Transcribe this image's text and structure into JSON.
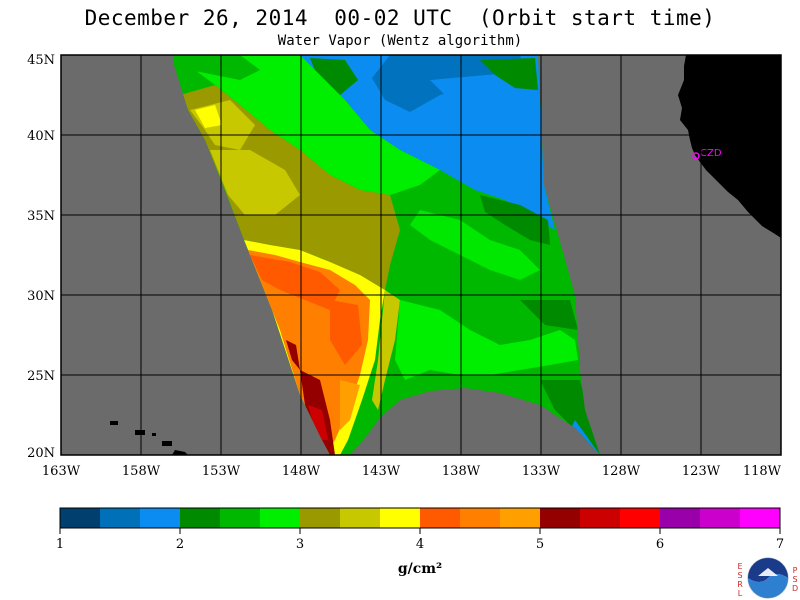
{
  "header": {
    "title": "December 26, 2014  00-02 UTC  (Orbit start time)",
    "subtitle": "Water Vapor (Wentz algorithm)"
  },
  "map": {
    "lat_labels": [
      "45N",
      "40N",
      "35N",
      "30N",
      "25N",
      "20N"
    ],
    "lon_labels": [
      "163W",
      "158W",
      "153W",
      "148W",
      "143W",
      "138W",
      "133W",
      "128W",
      "123W",
      "118W"
    ],
    "station_label": "CZD",
    "colors": {
      "ocean_nodata": "#6b6b6b",
      "land": "#000000",
      "station": "#ff00ff",
      "grid": "#000000"
    }
  },
  "colorbar": {
    "min": 1,
    "max": 7,
    "tick_labels": [
      "1",
      "2",
      "3",
      "4",
      "5",
      "6",
      "7"
    ],
    "unit": "g/cm²",
    "colors": [
      "#003f6e",
      "#0070b8",
      "#0a8cf0",
      "#008a00",
      "#00b800",
      "#00ee00",
      "#9a9a00",
      "#c8c800",
      "#ffff00",
      "#ff5a00",
      "#ff7f00",
      "#ff9f00",
      "#940000",
      "#cc0000",
      "#ff0000",
      "#9900aa",
      "#cc00cc",
      "#ff00ff"
    ]
  },
  "logo": {
    "name": "noaa-logo",
    "left_letters": "ESRL",
    "right_letters": "PSD"
  }
}
